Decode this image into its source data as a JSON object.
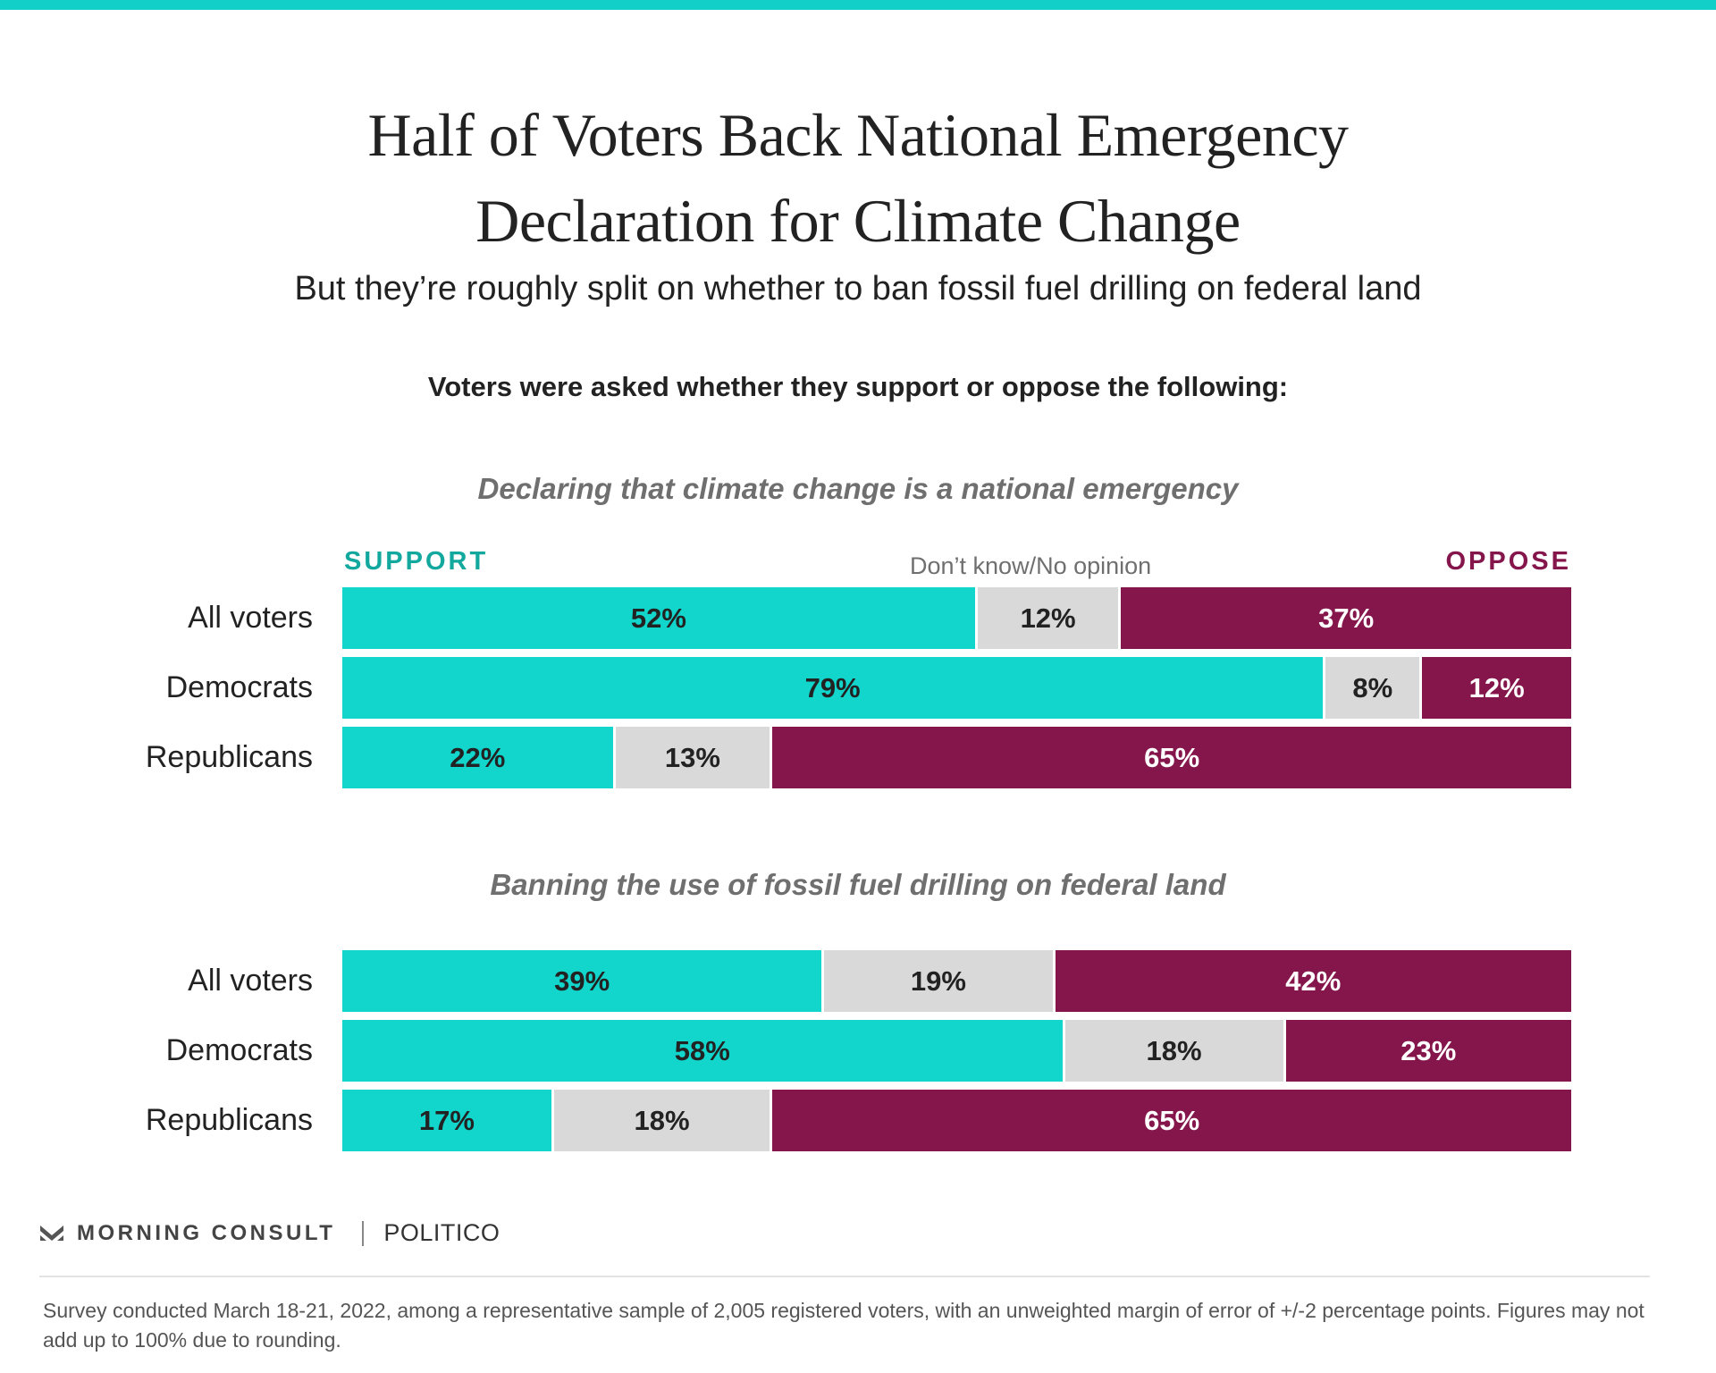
{
  "header": {
    "title_line1": "Half of Voters Back National Emergency",
    "title_line2": "Declaration for Climate Change",
    "subtitle": "But they’re roughly split on whether to ban fossil fuel drilling on federal land",
    "question": "Voters were asked whether they support or oppose the following:"
  },
  "legend": {
    "support": "SUPPORT",
    "dont_know": "Don’t know/No opinion",
    "oppose": "OPPOSE"
  },
  "colors": {
    "support": "#12d6cb",
    "dont_know": "#d9d9d9",
    "oppose": "#85164b",
    "accent_bar": "#12cfc7"
  },
  "chart_data": [
    {
      "type": "bar",
      "orientation": "horizontal",
      "stacked": true,
      "title": "Declaring that climate change is a national emergency",
      "categories": [
        "All voters",
        "Democrats",
        "Republicans"
      ],
      "series": [
        {
          "name": "SUPPORT",
          "values": [
            52,
            79,
            22
          ],
          "labels": [
            "52%",
            "79%",
            "22%"
          ]
        },
        {
          "name": "Don’t know/No opinion",
          "values": [
            12,
            8,
            13
          ],
          "labels": [
            "12%",
            "8%",
            "13%"
          ]
        },
        {
          "name": "OPPOSE",
          "values": [
            37,
            12,
            65
          ],
          "labels": [
            "37%",
            "12%",
            "65%"
          ]
        }
      ],
      "legend_position": "top"
    },
    {
      "type": "bar",
      "orientation": "horizontal",
      "stacked": true,
      "title": "Banning the use of fossil fuel drilling on federal land",
      "categories": [
        "All voters",
        "Democrats",
        "Republicans"
      ],
      "series": [
        {
          "name": "SUPPORT",
          "values": [
            39,
            58,
            17
          ],
          "labels": [
            "39%",
            "58%",
            "17%"
          ]
        },
        {
          "name": "Don’t know/No opinion",
          "values": [
            19,
            18,
            18
          ],
          "labels": [
            "19%",
            "18%",
            "18%"
          ]
        },
        {
          "name": "OPPOSE",
          "values": [
            42,
            23,
            65
          ],
          "labels": [
            "42%",
            "23%",
            "65%"
          ]
        }
      ],
      "legend_position": "top"
    }
  ],
  "footer": {
    "brand_morning_consult": "MORNING CONSULT",
    "brand_politico": "POLITICO",
    "note": "Survey conducted March 18-21, 2022, among a representative sample of 2,005 registered voters, with an unweighted margin of error of +/-2 percentage points. Figures may not add up to 100% due to rounding."
  }
}
